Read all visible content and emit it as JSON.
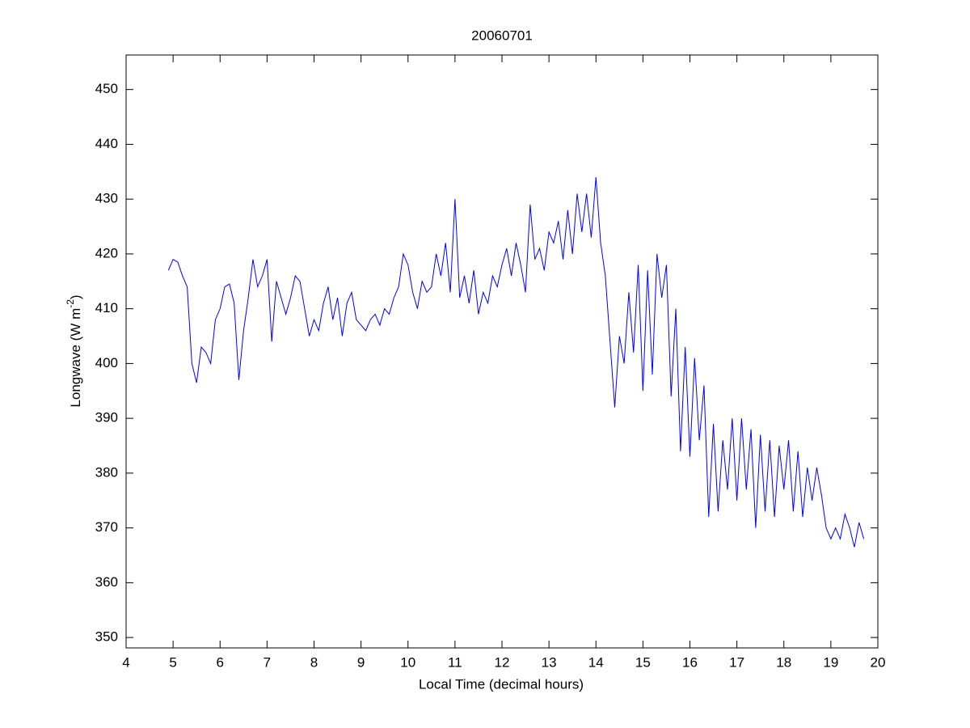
{
  "chart_data": {
    "type": "line",
    "title": "20060701",
    "x_label": "Local Time (decimal hours)",
    "y_label": [
      "Longwave (W m",
      "-2",
      ")"
    ],
    "color": "#0000ff",
    "x": [
      4.9,
      5.0,
      5.1,
      5.2,
      5.3,
      5.4,
      5.5,
      5.6,
      5.7,
      5.8,
      5.9,
      6.0,
      6.1,
      6.2,
      6.3,
      6.4,
      6.5,
      6.6,
      6.7,
      6.8,
      6.9,
      7.0,
      7.1,
      7.2,
      7.3,
      7.4,
      7.5,
      7.6,
      7.7,
      7.8,
      7.9,
      8.0,
      8.1,
      8.2,
      8.3,
      8.4,
      8.5,
      8.6,
      8.7,
      8.8,
      8.9,
      9.0,
      9.1,
      9.2,
      9.3,
      9.4,
      9.5,
      9.6,
      9.7,
      9.8,
      9.9,
      10.0,
      10.1,
      10.2,
      10.3,
      10.4,
      10.5,
      10.6,
      10.7,
      10.8,
      10.9,
      11.0,
      11.1,
      11.2,
      11.3,
      11.4,
      11.5,
      11.6,
      11.7,
      11.8,
      11.9,
      12.0,
      12.1,
      12.2,
      12.3,
      12.4,
      12.5,
      12.6,
      12.7,
      12.8,
      12.9,
      13.0,
      13.1,
      13.2,
      13.3,
      13.4,
      13.5,
      13.6,
      13.7,
      13.8,
      13.9,
      14.0,
      14.1,
      14.2,
      14.3,
      14.4,
      14.5,
      14.6,
      14.7,
      14.8,
      14.9,
      15.0,
      15.1,
      15.2,
      15.3,
      15.4,
      15.5,
      15.6,
      15.7,
      15.8,
      15.9,
      16.0,
      16.1,
      16.2,
      16.3,
      16.4,
      16.5,
      16.6,
      16.7,
      16.8,
      16.9,
      17.0,
      17.1,
      17.2,
      17.3,
      17.4,
      17.5,
      17.6,
      17.7,
      17.8,
      17.9,
      18.0,
      18.1,
      18.2,
      18.3,
      18.4,
      18.5,
      18.6,
      18.7,
      18.8,
      18.9,
      19.0,
      19.1,
      19.2,
      19.3,
      19.4,
      19.5,
      19.6,
      19.7
    ],
    "values": [
      417,
      419,
      418.5,
      416,
      414,
      400,
      396.5,
      403,
      402,
      400,
      408,
      410,
      414,
      414.5,
      411,
      397,
      406,
      412,
      419,
      414,
      416,
      419,
      404,
      415,
      412,
      409,
      412,
      416,
      415,
      410,
      405,
      408,
      406,
      411,
      414,
      408,
      412,
      405,
      411,
      413,
      408,
      407,
      406,
      408,
      409,
      407,
      410,
      409,
      412,
      414,
      420,
      418,
      413,
      410,
      415,
      413,
      414,
      420,
      416,
      422,
      413,
      430,
      412,
      416,
      411,
      417,
      409,
      413,
      411,
      416,
      414,
      418,
      421,
      416,
      422,
      418,
      413,
      429,
      419,
      421,
      417,
      424,
      422,
      426,
      419,
      428,
      420,
      431,
      424,
      431,
      423,
      434,
      422,
      416,
      404,
      392,
      405,
      400,
      413,
      402,
      418,
      395,
      417,
      398,
      420,
      412,
      418,
      394,
      410,
      384,
      403,
      383,
      401,
      386,
      396,
      372,
      389,
      373,
      386,
      377,
      390,
      375,
      390,
      377,
      388,
      370,
      387,
      373,
      386,
      372,
      385,
      377,
      386,
      373,
      384,
      372,
      381,
      375,
      381,
      376,
      370,
      368,
      370,
      368,
      372.5,
      370,
      366.5,
      371,
      368
    ],
    "xlim": [
      4,
      20
    ],
    "xticks": [
      4,
      5,
      6,
      7,
      8,
      9,
      10,
      11,
      12,
      13,
      14,
      15,
      16,
      17,
      18,
      19,
      20
    ],
    "ylim": [
      348.1,
      456.3
    ],
    "yticks": [
      350,
      360,
      370,
      380,
      390,
      400,
      410,
      420,
      430,
      440,
      450
    ],
    "grid": false
  }
}
